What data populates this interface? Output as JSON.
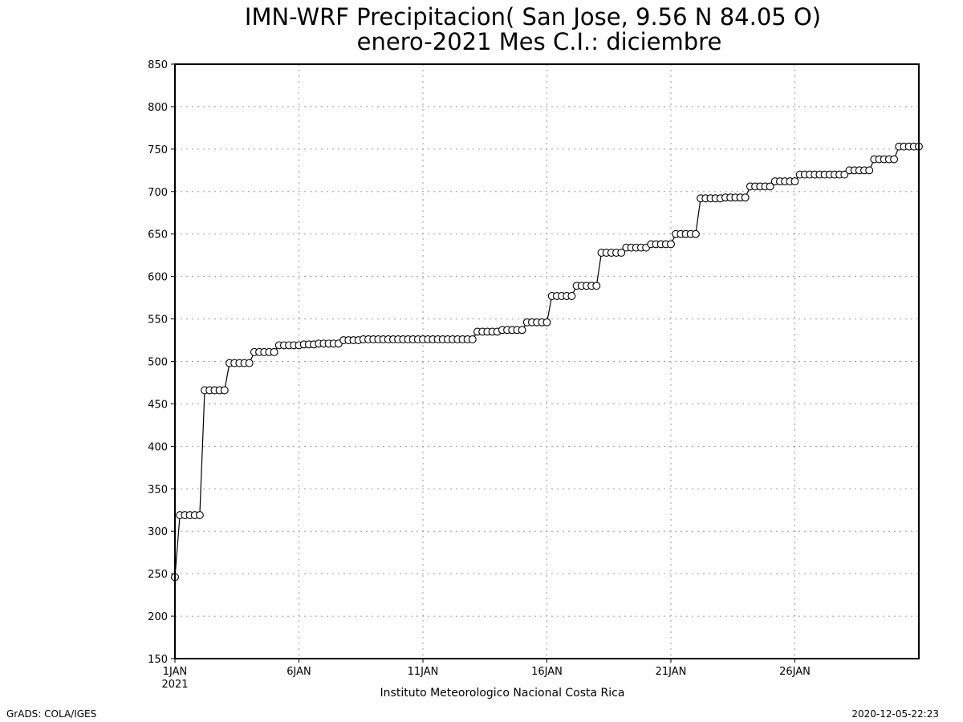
{
  "chart_data": {
    "type": "line",
    "title": "IMN-WRF  Precipitacion( San Jose, 9.56  N 84.05  O)",
    "subtitle": "enero-2021 Mes C.I.: diciembre",
    "xlabel": "",
    "ylabel": "",
    "ylim": [
      150,
      850
    ],
    "y_ticks": [
      150,
      200,
      250,
      300,
      350,
      400,
      450,
      500,
      550,
      600,
      650,
      700,
      750,
      800,
      850
    ],
    "y_tick_labels": [
      "150",
      "200",
      "250",
      "300",
      "350",
      "400",
      "450",
      "500",
      "550",
      "600",
      "650",
      "700",
      "750",
      "800",
      "850"
    ],
    "xlim": [
      1,
      31
    ],
    "x_ticks": [
      1,
      6,
      11,
      16,
      21,
      26
    ],
    "x_tick_labels": [
      "1JAN",
      "6JAN",
      "11JAN",
      "16JAN",
      "21JAN",
      "26JAN"
    ],
    "x_sublabel": "2021",
    "grid": true,
    "marker": "open-circle",
    "x_units": "day of January 2021",
    "series": [
      {
        "x": [
          1.0,
          1.2,
          1.4,
          1.6,
          1.8,
          2.0,
          2.2,
          2.4,
          2.6,
          2.8,
          3.0,
          3.2,
          3.4,
          3.6,
          3.8,
          4.0,
          4.2,
          4.4,
          4.6,
          4.8,
          5.0,
          5.2,
          5.4,
          5.6,
          5.8,
          6.0,
          6.2,
          6.4,
          6.6,
          6.8,
          7.0,
          7.2,
          7.4,
          7.6,
          7.8,
          8.0,
          8.2,
          8.4,
          8.6,
          8.8,
          9.0,
          9.2,
          9.4,
          9.6,
          9.8,
          10.0,
          10.2,
          10.4,
          10.6,
          10.8,
          11.0,
          11.2,
          11.4,
          11.6,
          11.8,
          12.0,
          12.2,
          12.4,
          12.6,
          12.8,
          13.0,
          13.2,
          13.4,
          13.6,
          13.8,
          14.0,
          14.2,
          14.4,
          14.6,
          14.8,
          15.0,
          15.2,
          15.4,
          15.6,
          15.8,
          16.0,
          16.2,
          16.4,
          16.6,
          16.8,
          17.0,
          17.2,
          17.4,
          17.6,
          17.8,
          18.0,
          18.2,
          18.4,
          18.6,
          18.8,
          19.0,
          19.2,
          19.4,
          19.6,
          19.8,
          20.0,
          20.2,
          20.4,
          20.6,
          20.8,
          21.0,
          21.2,
          21.4,
          21.6,
          21.8,
          22.0,
          22.2,
          22.4,
          22.6,
          22.8,
          23.0,
          23.2,
          23.4,
          23.6,
          23.8,
          24.0,
          24.2,
          24.4,
          24.6,
          24.8,
          25.0,
          25.2,
          25.4,
          25.6,
          25.8,
          26.0,
          26.2,
          26.4,
          26.6,
          26.8,
          27.0,
          27.2,
          27.4,
          27.6,
          27.8,
          28.0,
          28.2,
          28.4,
          28.6,
          28.8,
          29.0,
          29.2,
          29.4,
          29.6,
          29.8,
          30.0,
          30.2,
          30.4,
          30.6,
          30.8,
          31.0
        ],
        "y": [
          246,
          319,
          319,
          319,
          319,
          319,
          466,
          466,
          466,
          466,
          466,
          498,
          498,
          498,
          498,
          498,
          511,
          511,
          511,
          511,
          511,
          519,
          519,
          519,
          519,
          519,
          520,
          520,
          520,
          521,
          521,
          521,
          521,
          521,
          525,
          525,
          525,
          525,
          526,
          526,
          526,
          526,
          526,
          526,
          526,
          526,
          526,
          526,
          526,
          526,
          526,
          526,
          526,
          526,
          526,
          526,
          526,
          526,
          526,
          526,
          526,
          535,
          535,
          535,
          535,
          535,
          537,
          537,
          537,
          537,
          537,
          546,
          546,
          546,
          546,
          546,
          577,
          577,
          577,
          577,
          577,
          589,
          589,
          589,
          589,
          589,
          628,
          628,
          628,
          628,
          628,
          634,
          634,
          634,
          634,
          634,
          638,
          638,
          638,
          638,
          638,
          650,
          650,
          650,
          650,
          650,
          692,
          692,
          692,
          692,
          692,
          693,
          693,
          693,
          693,
          693,
          706,
          706,
          706,
          706,
          706,
          712,
          712,
          712,
          712,
          712,
          720,
          720,
          720,
          720,
          720,
          720,
          720,
          720,
          720,
          720,
          725,
          725,
          725,
          725,
          725,
          738,
          738,
          738,
          738,
          738,
          753,
          753,
          753,
          753,
          753
        ]
      }
    ]
  },
  "footer": {
    "institution": "Instituto Meteorologico Nacional Costa Rica",
    "credit": "GrADS: COLA/IGES",
    "timestamp": "2020-12-05-22:23"
  }
}
